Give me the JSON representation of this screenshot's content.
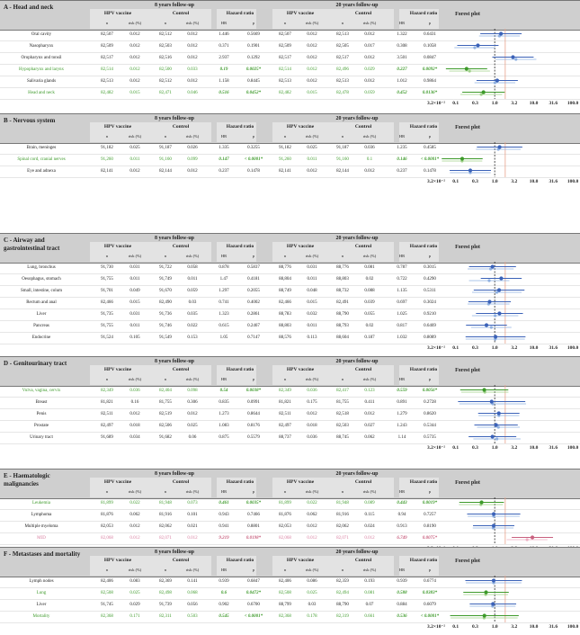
{
  "header": {
    "fu8": "8 years follow-up",
    "fu20": "20 years follow-up",
    "hpv": "HPV vaccine",
    "control": "Control",
    "hr": "Hazard ratio",
    "n": "n",
    "risk": "risk (%)",
    "hr_short": "HR",
    "p": "p",
    "forest": "Forest plot"
  },
  "axis_labels": [
    "3.2×10⁻²",
    "0.1",
    "0.3",
    "1.0",
    "3.2",
    "10.0",
    "31.6",
    "100.0"
  ],
  "sections": [
    {
      "title": "A - Head and neck",
      "rows": [
        {
          "label": "Oral cavity",
          "v": [
            "82,507",
            "0.012",
            "82,512",
            "0.012",
            "1.446",
            "0.5669",
            "82,507",
            "0.012",
            "82,513",
            "0.012",
            "1.322",
            "0.6431"
          ],
          "sig": false,
          "mid": false
        },
        {
          "label": "Nasopharynx",
          "v": [
            "82,509",
            "0.012",
            "82,503",
            "0.012",
            "0.371",
            "0.1901",
            "82,509",
            "0.012",
            "82,505",
            "0.017",
            "0.308",
            "0.1058"
          ],
          "sig": false,
          "mid": false
        },
        {
          "label": "Oropharynx and tonsil",
          "v": [
            "82,517",
            "0.012",
            "82,516",
            "0.012",
            "2.937",
            "0.1292",
            "82,517",
            "0.012",
            "82,517",
            "0.012",
            "3.501",
            "0.0847"
          ],
          "sig": false,
          "mid": false
        },
        {
          "label": "Hypopharynx and larynx",
          "v": [
            "82,514",
            "0.012",
            "82,500",
            "0.033",
            "0.19",
            "0.0025*",
            "82,514",
            "0.012",
            "82,496",
            "0.029",
            "0.227",
            "0.0092*"
          ],
          "sig": true,
          "mid": false
        },
        {
          "label": "Salivaria glands",
          "v": [
            "82,513",
            "0.012",
            "82,512",
            "0.012",
            "1.158",
            "0.8445",
            "82,513",
            "0.012",
            "82,513",
            "0.012",
            "1.012",
            "0.9864"
          ],
          "sig": false,
          "mid": false
        },
        {
          "label": "Head and neck",
          "v": [
            "82,482",
            "0.015",
            "82,471",
            "0.046",
            "0.516",
            "0.0452*",
            "82,482",
            "0.015",
            "82,478",
            "0.059",
            "0.452",
            "0.0136*"
          ],
          "sig": true,
          "mid": false
        }
      ]
    },
    {
      "title": "B - Nervous system",
      "rows": [
        {
          "label": "Brain, meninges",
          "v": [
            "91,182",
            "0.025",
            "91,187",
            "0.026",
            "1.335",
            "0.3255",
            "91,182",
            "0.025",
            "91,187",
            "0.036",
            "1.235",
            "0.4585"
          ],
          "sig": false,
          "mid": false
        },
        {
          "label": "Spinal cord, cranial nerves",
          "v": [
            "91,260",
            "0.011",
            "91,160",
            "0.099",
            "0.147",
            "< 0.0001*",
            "91,260",
            "0.011",
            "91,160",
            "0.1",
            "0.146",
            "< 0.0001*"
          ],
          "sig": true,
          "mid": false
        },
        {
          "label": "Eye and adnexa",
          "v": [
            "82,141",
            "0.012",
            "82,144",
            "0.012",
            "0.237",
            "0.1478",
            "82,141",
            "0.012",
            "82,144",
            "0.012",
            "0.237",
            "0.1478"
          ],
          "sig": false,
          "mid": false
        }
      ]
    },
    {
      "title": "C - Airway and gastrointestinal tract",
      "rows": [
        {
          "label": "Lung, bronchus",
          "v": [
            "91,730",
            "0.031",
            "91,722",
            "0.058",
            "0.878",
            "0.5837",
            "88,776",
            "0.031",
            "88,776",
            "0.081",
            "0.787",
            "0.3015"
          ],
          "sig": false,
          "mid": false
        },
        {
          "label": "Oesophagus, stomach",
          "v": [
            "91,755",
            "0.011",
            "91,749",
            "0.011",
            "1.47",
            "0.4181",
            "88,804",
            "0.011",
            "88,803",
            "0.02",
            "0.722",
            "0.4290"
          ],
          "sig": false,
          "mid": false
        },
        {
          "label": "Small, intestine, colum",
          "v": [
            "91,701",
            "0.049",
            "91,670",
            "0.059",
            "1.297",
            "0.2055",
            "88,749",
            "0.048",
            "88,732",
            "0.088",
            "1.135",
            "0.5311"
          ],
          "sig": false,
          "mid": false
        },
        {
          "label": "Rectum and anal",
          "v": [
            "82,466",
            "0.015",
            "82,490",
            "0.03",
            "0.741",
            "0.4002",
            "82,466",
            "0.015",
            "82,491",
            "0.039",
            "0.697",
            "0.3024"
          ],
          "sig": false,
          "mid": false
        },
        {
          "label": "Liver",
          "v": [
            "91,735",
            "0.031",
            "91,736",
            "0.035",
            "1.323",
            "0.2861",
            "88,783",
            "0.032",
            "88,790",
            "0.055",
            "1.025",
            "0.9210"
          ],
          "sig": false,
          "mid": false
        },
        {
          "label": "Pancreas",
          "v": [
            "91,755",
            "0.011",
            "91,746",
            "0.022",
            "0.615",
            "0.2467",
            "88,803",
            "0.011",
            "88,793",
            "0.02",
            "0.817",
            "0.6469"
          ],
          "sig": false,
          "mid": false
        },
        {
          "label": "Endocrine",
          "v": [
            "91,524",
            "0.105",
            "91,549",
            "0.153",
            "1.05",
            "0.7147",
            "88,576",
            "0.113",
            "88,604",
            "0.187",
            "1.032",
            "0.8089"
          ],
          "sig": false,
          "mid": false
        }
      ]
    },
    {
      "title": "D - Genitourinary tract",
      "rows": [
        {
          "label": "Vulva, vagina, cervix",
          "v": [
            "82,349",
            "0.036",
            "82,404",
            "0.098",
            "0.54",
            "0.0038*",
            "82,349",
            "0.036",
            "82,417",
            "0.123",
            "0.559",
            "0.0056*"
          ],
          "sig": true,
          "mid": false
        },
        {
          "label": "Breast",
          "v": [
            "81,821",
            "0.16",
            "81,755",
            "0.306",
            "0.835",
            "0.0991",
            "81,821",
            "0.175",
            "81,755",
            "0.411",
            "0.891",
            "0.2728"
          ],
          "sig": false,
          "mid": false
        },
        {
          "label": "Penis",
          "v": [
            "82,511",
            "0.012",
            "82,519",
            "0.012",
            "1.273",
            "0.8644",
            "82,511",
            "0.012",
            "82,518",
            "0.012",
            "1.279",
            "0.8620"
          ],
          "sig": false,
          "mid": false
        },
        {
          "label": "Prostate",
          "v": [
            "82,497",
            "0.018",
            "82,506",
            "0.025",
            "1.083",
            "0.8176",
            "82,497",
            "0.018",
            "82,503",
            "0.027",
            "1.243",
            "0.5344"
          ],
          "sig": false,
          "mid": false
        },
        {
          "label": "Urinary tract",
          "v": [
            "91,689",
            "0.034",
            "91,682",
            "0.06",
            "0.875",
            "0.5579",
            "88,737",
            "0.036",
            "88,745",
            "0.062",
            "1.14",
            "0.5735"
          ],
          "sig": false,
          "mid": false
        }
      ]
    },
    {
      "title": "E - Haematologic malignancies",
      "rows": [
        {
          "label": "Leukemia",
          "v": [
            "81,899",
            "0.022",
            "81,948",
            "0.073",
            "0.461",
            "0.0035*",
            "81,899",
            "0.022",
            "81,948",
            "0.089",
            "0.443",
            "0.0019*"
          ],
          "sig": true,
          "mid": false
        },
        {
          "label": "Lymphoma",
          "v": [
            "81,876",
            "0.062",
            "81,916",
            "0.101",
            "0.943",
            "0.7466",
            "81,876",
            "0.062",
            "81,916",
            "0.115",
            "0.94",
            "0.7257"
          ],
          "sig": false,
          "mid": false
        },
        {
          "label": "Multiple myeloma",
          "v": [
            "82,053",
            "0.012",
            "82,062",
            "0.021",
            "0.941",
            "0.8801",
            "82,053",
            "0.012",
            "82,062",
            "0.024",
            "0.913",
            "0.8190"
          ],
          "sig": false,
          "mid": false
        },
        {
          "label": "MID",
          "v": [
            "82,068",
            "0.012",
            "82,071",
            "0.012",
            "9.219",
            "0.0198*",
            "82,068",
            "0.012",
            "82,071",
            "0.012",
            "6.749",
            "0.0075*"
          ],
          "sig": false,
          "mid": true
        }
      ]
    },
    {
      "title": "F - Metastases and mortality",
      "rows": [
        {
          "label": "Lymph nodes",
          "v": [
            "82,406",
            "0.083",
            "82,369",
            "0.141",
            "0.939",
            "0.6847",
            "82,406",
            "0.086",
            "82,359",
            "0.193",
            "0.939",
            "0.6774"
          ],
          "sig": false,
          "mid": false
        },
        {
          "label": "Lung",
          "v": [
            "82,508",
            "0.025",
            "82,498",
            "0.068",
            "0.6",
            "0.0472*",
            "82,508",
            "0.025",
            "82,494",
            "0.081",
            "0.588",
            "0.0383*"
          ],
          "sig": true,
          "mid": false
        },
        {
          "label": "Liver",
          "v": [
            "91,745",
            "0.029",
            "91,739",
            "0.056",
            "0.902",
            "0.6700",
            "88,799",
            "0.03",
            "88,790",
            "0.07",
            "0.884",
            "0.6079"
          ],
          "sig": false,
          "mid": false
        },
        {
          "label": "Mortality",
          "v": [
            "82,368",
            "0.171",
            "82,311",
            "0.503",
            "0.545",
            "< 0.0001*",
            "82,368",
            "0.178",
            "82,319",
            "0.661",
            "0.536",
            "< 0.0001*"
          ],
          "sig": true,
          "mid": false
        }
      ]
    }
  ],
  "chart_data": {
    "type": "forest",
    "title": "Forest plot",
    "xscale": "log10",
    "xlim": [
      0.0316,
      100
    ],
    "reference_value": 1.0,
    "note": "Point estimates are the hazard ratios from the table (8-year = larger marker, 20-year = smaller marker); confidence intervals are approximate visual estimates.",
    "colors": {
      "normal": "#3b62b8",
      "normal_light": "#8fb0e0",
      "significant": "#3d9a2a",
      "significant_light": "#9fd189",
      "mid": "#c9607f",
      "mid_light": "#ecaec2",
      "ref_line": "#e6a38b"
    }
  }
}
